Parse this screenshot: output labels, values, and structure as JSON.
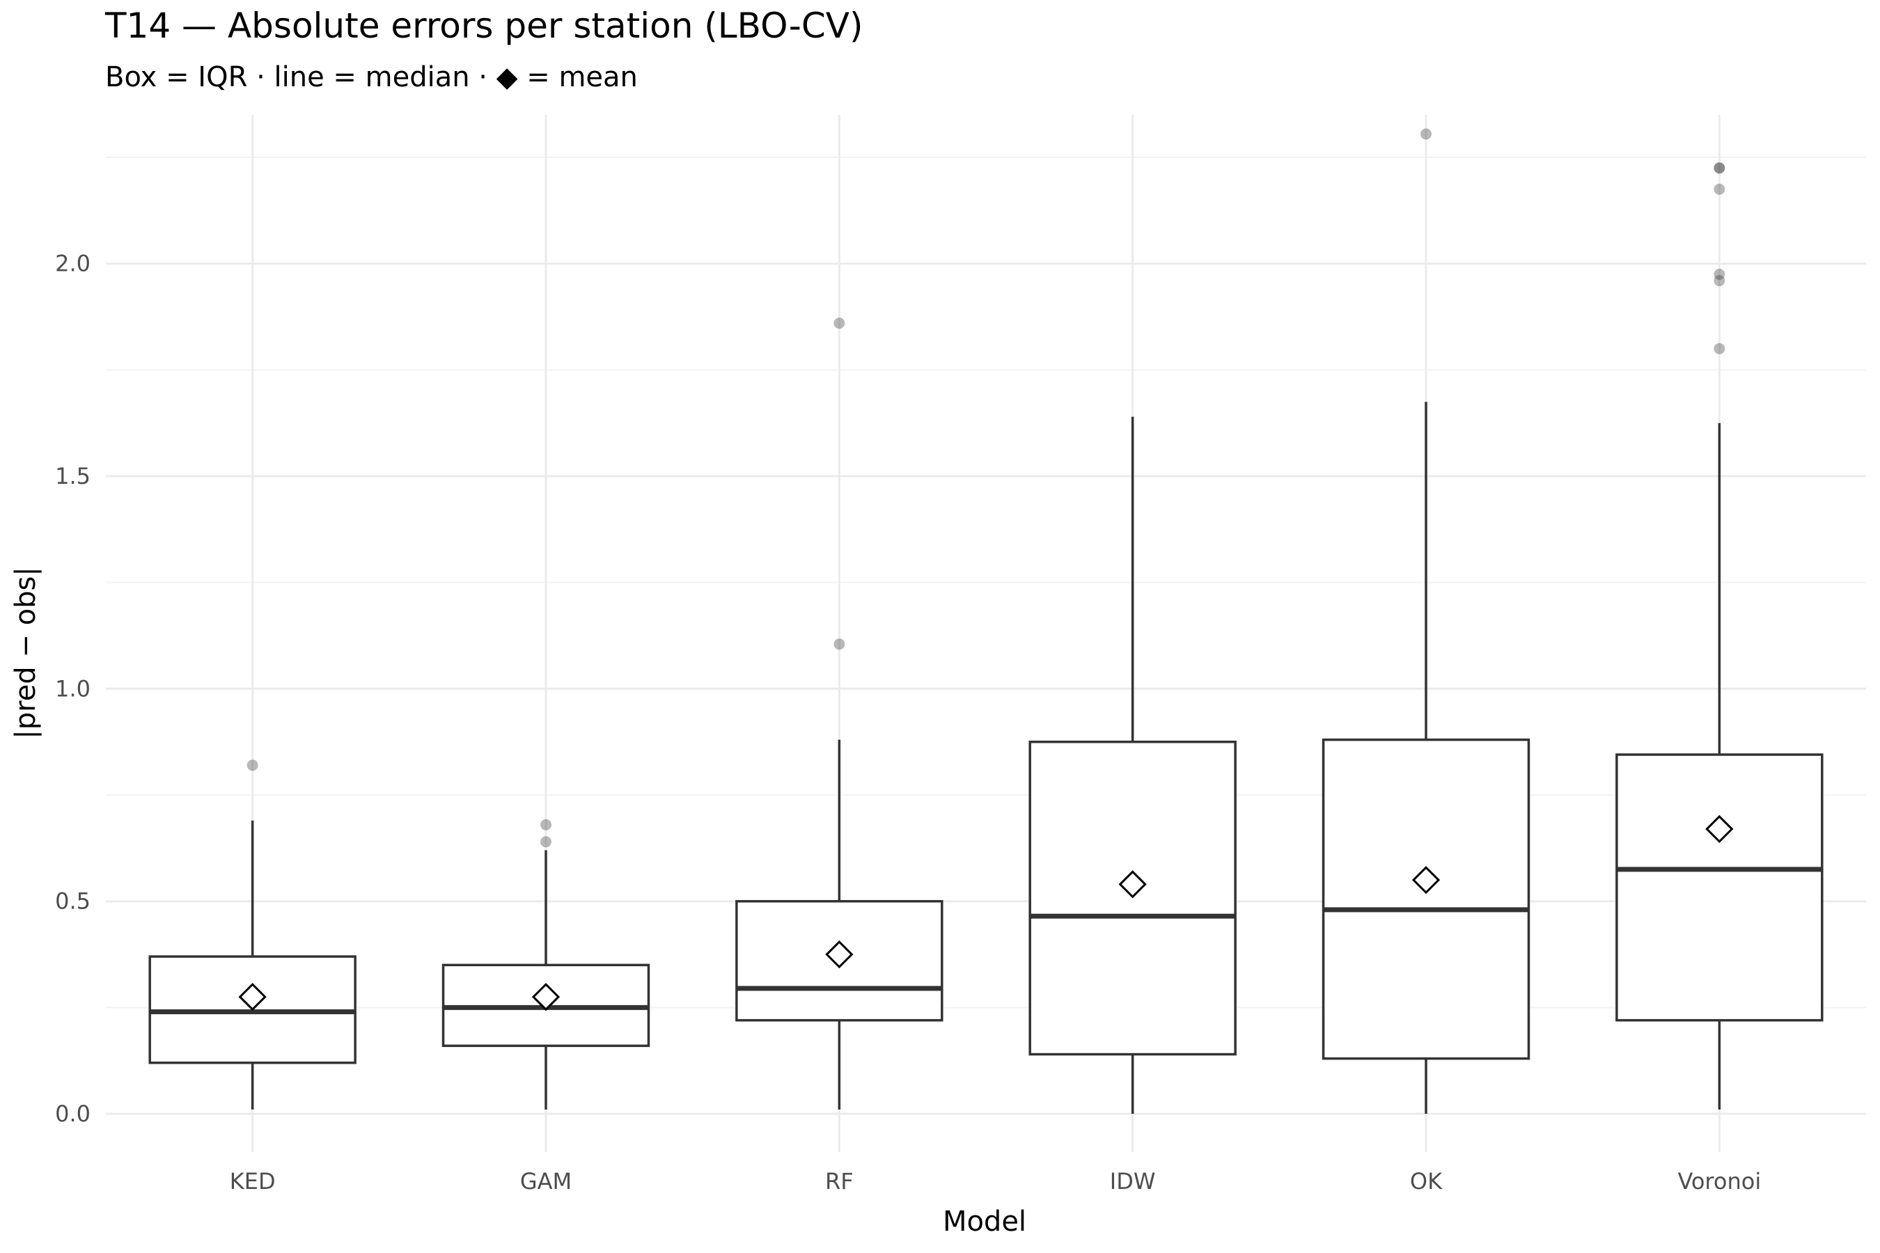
{
  "chart_data": {
    "type": "box",
    "title": "T14 — Absolute errors per station (LBO-CV)",
    "subtitle": "Box = IQR · line = median · ◆ = mean",
    "xlabel": "Model",
    "ylabel": "|pred − obs|",
    "ylim": [
      -0.09,
      2.35
    ],
    "yticks": [
      0.0,
      0.5,
      1.0,
      1.5,
      2.0
    ],
    "ytick_labels": [
      "0.0",
      "0.5",
      "1.0",
      "1.5",
      "2.0"
    ],
    "grid": true,
    "categories": [
      "KED",
      "GAM",
      "RF",
      "IDW",
      "OK",
      "Voronoi"
    ],
    "boxes": [
      {
        "model": "KED",
        "min": 0.01,
        "q1": 0.12,
        "median": 0.24,
        "q3": 0.37,
        "max": 0.69,
        "mean": 0.275,
        "outliers": [
          0.82
        ]
      },
      {
        "model": "GAM",
        "min": 0.01,
        "q1": 0.16,
        "median": 0.25,
        "q3": 0.35,
        "max": 0.62,
        "mean": 0.275,
        "outliers": [
          0.68,
          0.64
        ]
      },
      {
        "model": "RF",
        "min": 0.01,
        "q1": 0.22,
        "median": 0.295,
        "q3": 0.5,
        "max": 0.88,
        "mean": 0.375,
        "outliers": [
          1.86,
          1.105
        ]
      },
      {
        "model": "IDW",
        "min": 0.0,
        "q1": 0.14,
        "median": 0.465,
        "q3": 0.875,
        "max": 1.64,
        "mean": 0.54,
        "outliers": []
      },
      {
        "model": "OK",
        "min": 0.0,
        "q1": 0.13,
        "median": 0.48,
        "q3": 0.88,
        "max": 1.675,
        "mean": 0.55,
        "outliers": [
          2.305
        ]
      },
      {
        "model": "Voronoi",
        "min": 0.01,
        "q1": 0.22,
        "median": 0.575,
        "q3": 0.845,
        "max": 1.625,
        "mean": 0.67,
        "outliers": [
          2.225,
          2.225,
          2.175,
          1.975,
          1.96,
          1.8
        ]
      }
    ],
    "colors": {
      "box_fill": "#ffffff",
      "box_stroke": "#333333",
      "outlier": "#333333",
      "grid": "#ebebeb",
      "mean_marker": "#000000"
    }
  }
}
